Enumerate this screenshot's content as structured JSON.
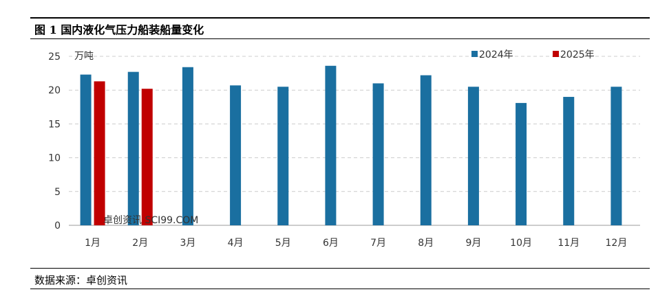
{
  "title": "图 1 国内液化气压力船装船量变化",
  "source": "数据来源：卓创资讯",
  "watermark": "卓创资讯 SCI99.COM",
  "chart_data": {
    "type": "bar",
    "title": "图 1 国内液化气压力船装船量变化",
    "ylabel": "万吨",
    "ylim": [
      0,
      25
    ],
    "yticks": [
      0,
      5,
      10,
      15,
      20,
      25
    ],
    "legend": "top-right",
    "categories": [
      "1月",
      "2月",
      "3月",
      "4月",
      "5月",
      "6月",
      "7月",
      "8月",
      "9月",
      "10月",
      "11月",
      "12月"
    ],
    "series": [
      {
        "name": "2024年",
        "color": "#1a6fa0",
        "values": [
          22.3,
          22.7,
          23.4,
          20.7,
          20.5,
          23.6,
          21.0,
          22.2,
          20.5,
          18.1,
          19.0,
          20.5
        ]
      },
      {
        "name": "2025年",
        "color": "#c00000",
        "values": [
          21.3,
          20.2,
          null,
          null,
          null,
          null,
          null,
          null,
          null,
          null,
          null,
          null
        ]
      }
    ]
  }
}
